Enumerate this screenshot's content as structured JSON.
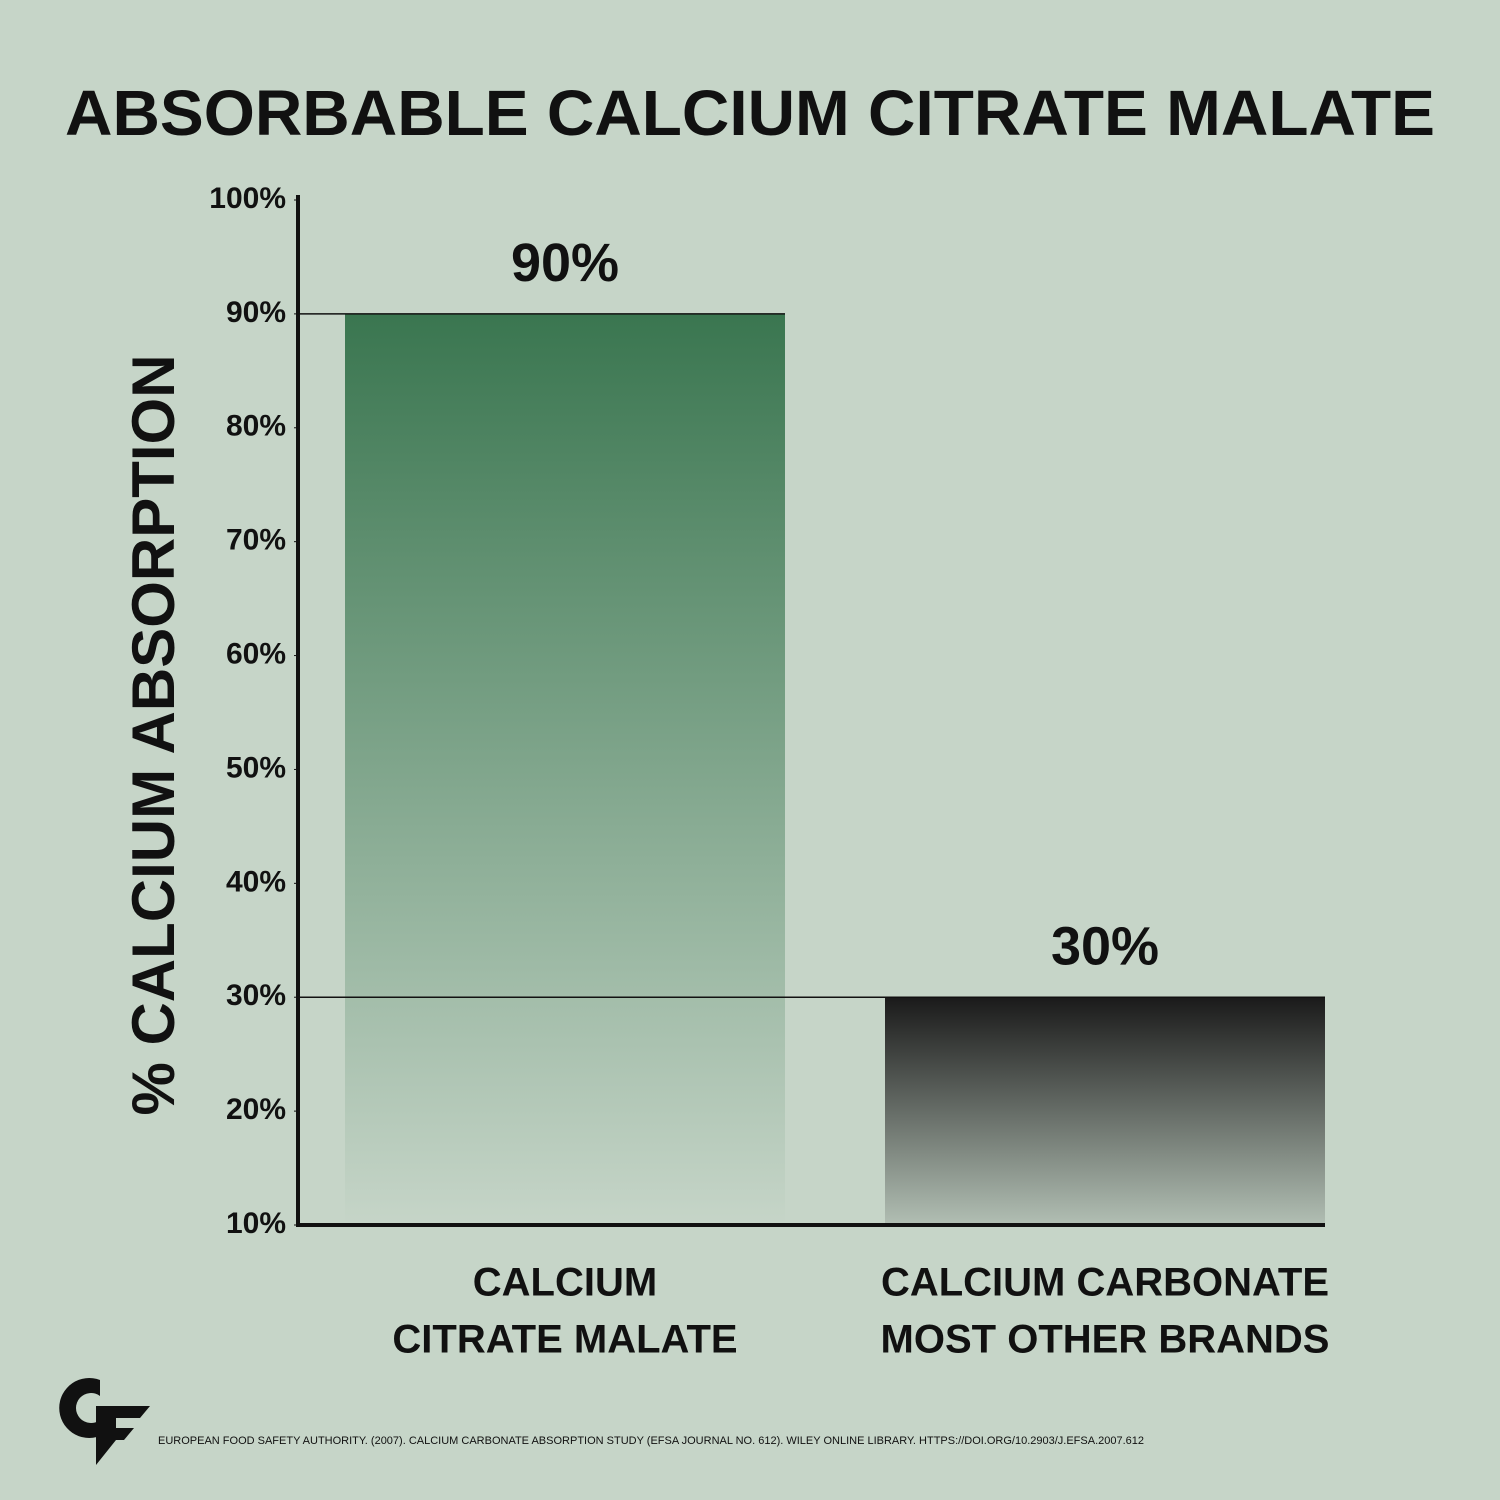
{
  "chart_data": {
    "type": "bar",
    "title": "ABSORBABLE CALCIUM CITRATE MALATE",
    "y_label": "% CALCIUM ABSORPTION",
    "categories": [
      [
        "CALCIUM",
        "CITRATE MALATE"
      ],
      [
        "CALCIUM CARBONATE",
        "MOST OTHER BRANDS"
      ]
    ],
    "values": [
      90,
      30
    ],
    "value_labels": [
      "90%",
      "30%"
    ],
    "colors": [
      "#3a7650",
      "#1a1a1a"
    ],
    "ylim": [
      10,
      100
    ],
    "yticks": [
      {
        "value": 10,
        "label": "10%"
      },
      {
        "value": 20,
        "label": "20%"
      },
      {
        "value": 30,
        "label": "30%"
      },
      {
        "value": 40,
        "label": "40%"
      },
      {
        "value": 50,
        "label": "50%"
      },
      {
        "value": 60,
        "label": "60%"
      },
      {
        "value": 70,
        "label": "70%"
      },
      {
        "value": 80,
        "label": "80%"
      },
      {
        "value": 90,
        "label": "90%"
      },
      {
        "value": 100,
        "label": "100%"
      }
    ],
    "source": "EUROPEAN FOOD SAFETY AUTHORITY. (2007). CALCIUM CARBONATE ABSORPTION STUDY (EFSA JOURNAL NO. 612). WILEY ONLINE LIBRARY. HTTPS://DOI.ORG/10.2903/J.EFSA.2007.612"
  }
}
